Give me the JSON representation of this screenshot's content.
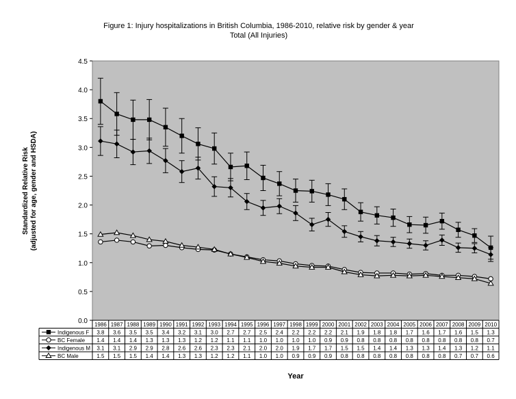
{
  "chart_data": {
    "type": "line",
    "title": "Figure 1: Injury hospitalizations in British Columbia, 1986-2010, relative risk by gender & year",
    "subtitle": "Total (All Injuries)",
    "ylabel_line1": "Standardized Relative Risk",
    "ylabel_line2": "(adjusted for age, gender and HSDA)",
    "xlabel": "Year",
    "ylim": [
      0,
      4.5
    ],
    "yticks": [
      "0.0",
      "0.5",
      "1.0",
      "1.5",
      "2.0",
      "2.5",
      "3.0",
      "3.5",
      "4.0",
      "4.5"
    ],
    "grid": false,
    "legend": "data-table",
    "colors": {
      "plot_bg": "#c0c0c0",
      "line": "#000000"
    },
    "categories": [
      "1986",
      "1987",
      "1988",
      "1989",
      "1990",
      "1991",
      "1992",
      "1993",
      "1994",
      "1995",
      "1996",
      "1997",
      "1998",
      "1999",
      "2000",
      "2001",
      "2002",
      "2003",
      "2004",
      "2005",
      "2006",
      "2007",
      "2008",
      "2009",
      "2010"
    ],
    "series": [
      {
        "name": "Indigenous F",
        "marker": "square",
        "values": [
          3.8,
          3.58,
          3.48,
          3.48,
          3.35,
          3.2,
          3.06,
          2.98,
          2.66,
          2.68,
          2.47,
          2.37,
          2.25,
          2.24,
          2.18,
          2.1,
          1.88,
          1.82,
          1.78,
          1.66,
          1.65,
          1.72,
          1.57,
          1.47,
          1.26
        ],
        "err": [
          0.4,
          0.37,
          0.34,
          0.35,
          0.33,
          0.3,
          0.28,
          0.27,
          0.24,
          0.24,
          0.22,
          0.21,
          0.2,
          0.19,
          0.19,
          0.18,
          0.16,
          0.15,
          0.15,
          0.14,
          0.14,
          0.14,
          0.13,
          0.12,
          0.2
        ],
        "labels": [
          "3.8",
          "3.6",
          "3.5",
          "3.5",
          "3.4",
          "3.2",
          "3.1",
          "3.0",
          "2.7",
          "2.7",
          "2.5",
          "2.4",
          "2.2",
          "2.2",
          "2.2",
          "2.1",
          "1.9",
          "1.8",
          "1.8",
          "1.7",
          "1.6",
          "1.7",
          "1.6",
          "1.5",
          "1.3"
        ]
      },
      {
        "name": "BC Female",
        "marker": "circle",
        "values": [
          1.36,
          1.39,
          1.36,
          1.29,
          1.3,
          1.26,
          1.23,
          1.22,
          1.15,
          1.1,
          1.05,
          1.03,
          0.98,
          0.95,
          0.94,
          0.88,
          0.83,
          0.82,
          0.82,
          0.8,
          0.81,
          0.78,
          0.78,
          0.76,
          0.72
        ],
        "err": [],
        "labels": [
          "1.4",
          "1.4",
          "1.4",
          "1.3",
          "1.3",
          "1.3",
          "1.2",
          "1.2",
          "1.1",
          "1.1",
          "1.0",
          "1.0",
          "1.0",
          "1.0",
          "0.9",
          "0.9",
          "0.8",
          "0.8",
          "0.8",
          "0.8",
          "0.8",
          "0.8",
          "0.8",
          "0.8",
          "0.7"
        ]
      },
      {
        "name": "Indigenous M",
        "marker": "diamond",
        "values": [
          3.11,
          3.06,
          2.92,
          2.94,
          2.77,
          2.58,
          2.64,
          2.32,
          2.3,
          2.06,
          1.95,
          1.98,
          1.86,
          1.66,
          1.75,
          1.54,
          1.45,
          1.38,
          1.36,
          1.33,
          1.3,
          1.39,
          1.26,
          1.25,
          1.14
        ],
        "err": [
          0.25,
          0.24,
          0.22,
          0.22,
          0.21,
          0.19,
          0.19,
          0.17,
          0.16,
          0.14,
          0.13,
          0.13,
          0.13,
          0.11,
          0.12,
          0.1,
          0.09,
          0.09,
          0.08,
          0.08,
          0.08,
          0.09,
          0.08,
          0.08,
          0.12
        ],
        "labels": [
          "3.1",
          "3.1",
          "2.9",
          "2.9",
          "2.8",
          "2.6",
          "2.6",
          "2.3",
          "2.3",
          "2.1",
          "2.0",
          "2.0",
          "1.9",
          "1.7",
          "1.7",
          "1.5",
          "1.5",
          "1.4",
          "1.4",
          "1.3",
          "1.3",
          "1.4",
          "1.3",
          "1.2",
          "1.1"
        ]
      },
      {
        "name": "BC Male",
        "marker": "triangle",
        "values": [
          1.49,
          1.52,
          1.47,
          1.4,
          1.37,
          1.3,
          1.27,
          1.23,
          1.15,
          1.09,
          1.02,
          0.99,
          0.94,
          0.92,
          0.92,
          0.84,
          0.79,
          0.77,
          0.78,
          0.77,
          0.78,
          0.76,
          0.74,
          0.72,
          0.64
        ],
        "err": [],
        "labels": [
          "1.5",
          "1.5",
          "1.5",
          "1.4",
          "1.4",
          "1.3",
          "1.3",
          "1.2",
          "1.2",
          "1.1",
          "1.0",
          "1.0",
          "0.9",
          "0.9",
          "0.9",
          "0.8",
          "0.8",
          "0.8",
          "0.8",
          "0.8",
          "0.8",
          "0.8",
          "0.7",
          "0.7",
          "0.6"
        ]
      }
    ]
  }
}
